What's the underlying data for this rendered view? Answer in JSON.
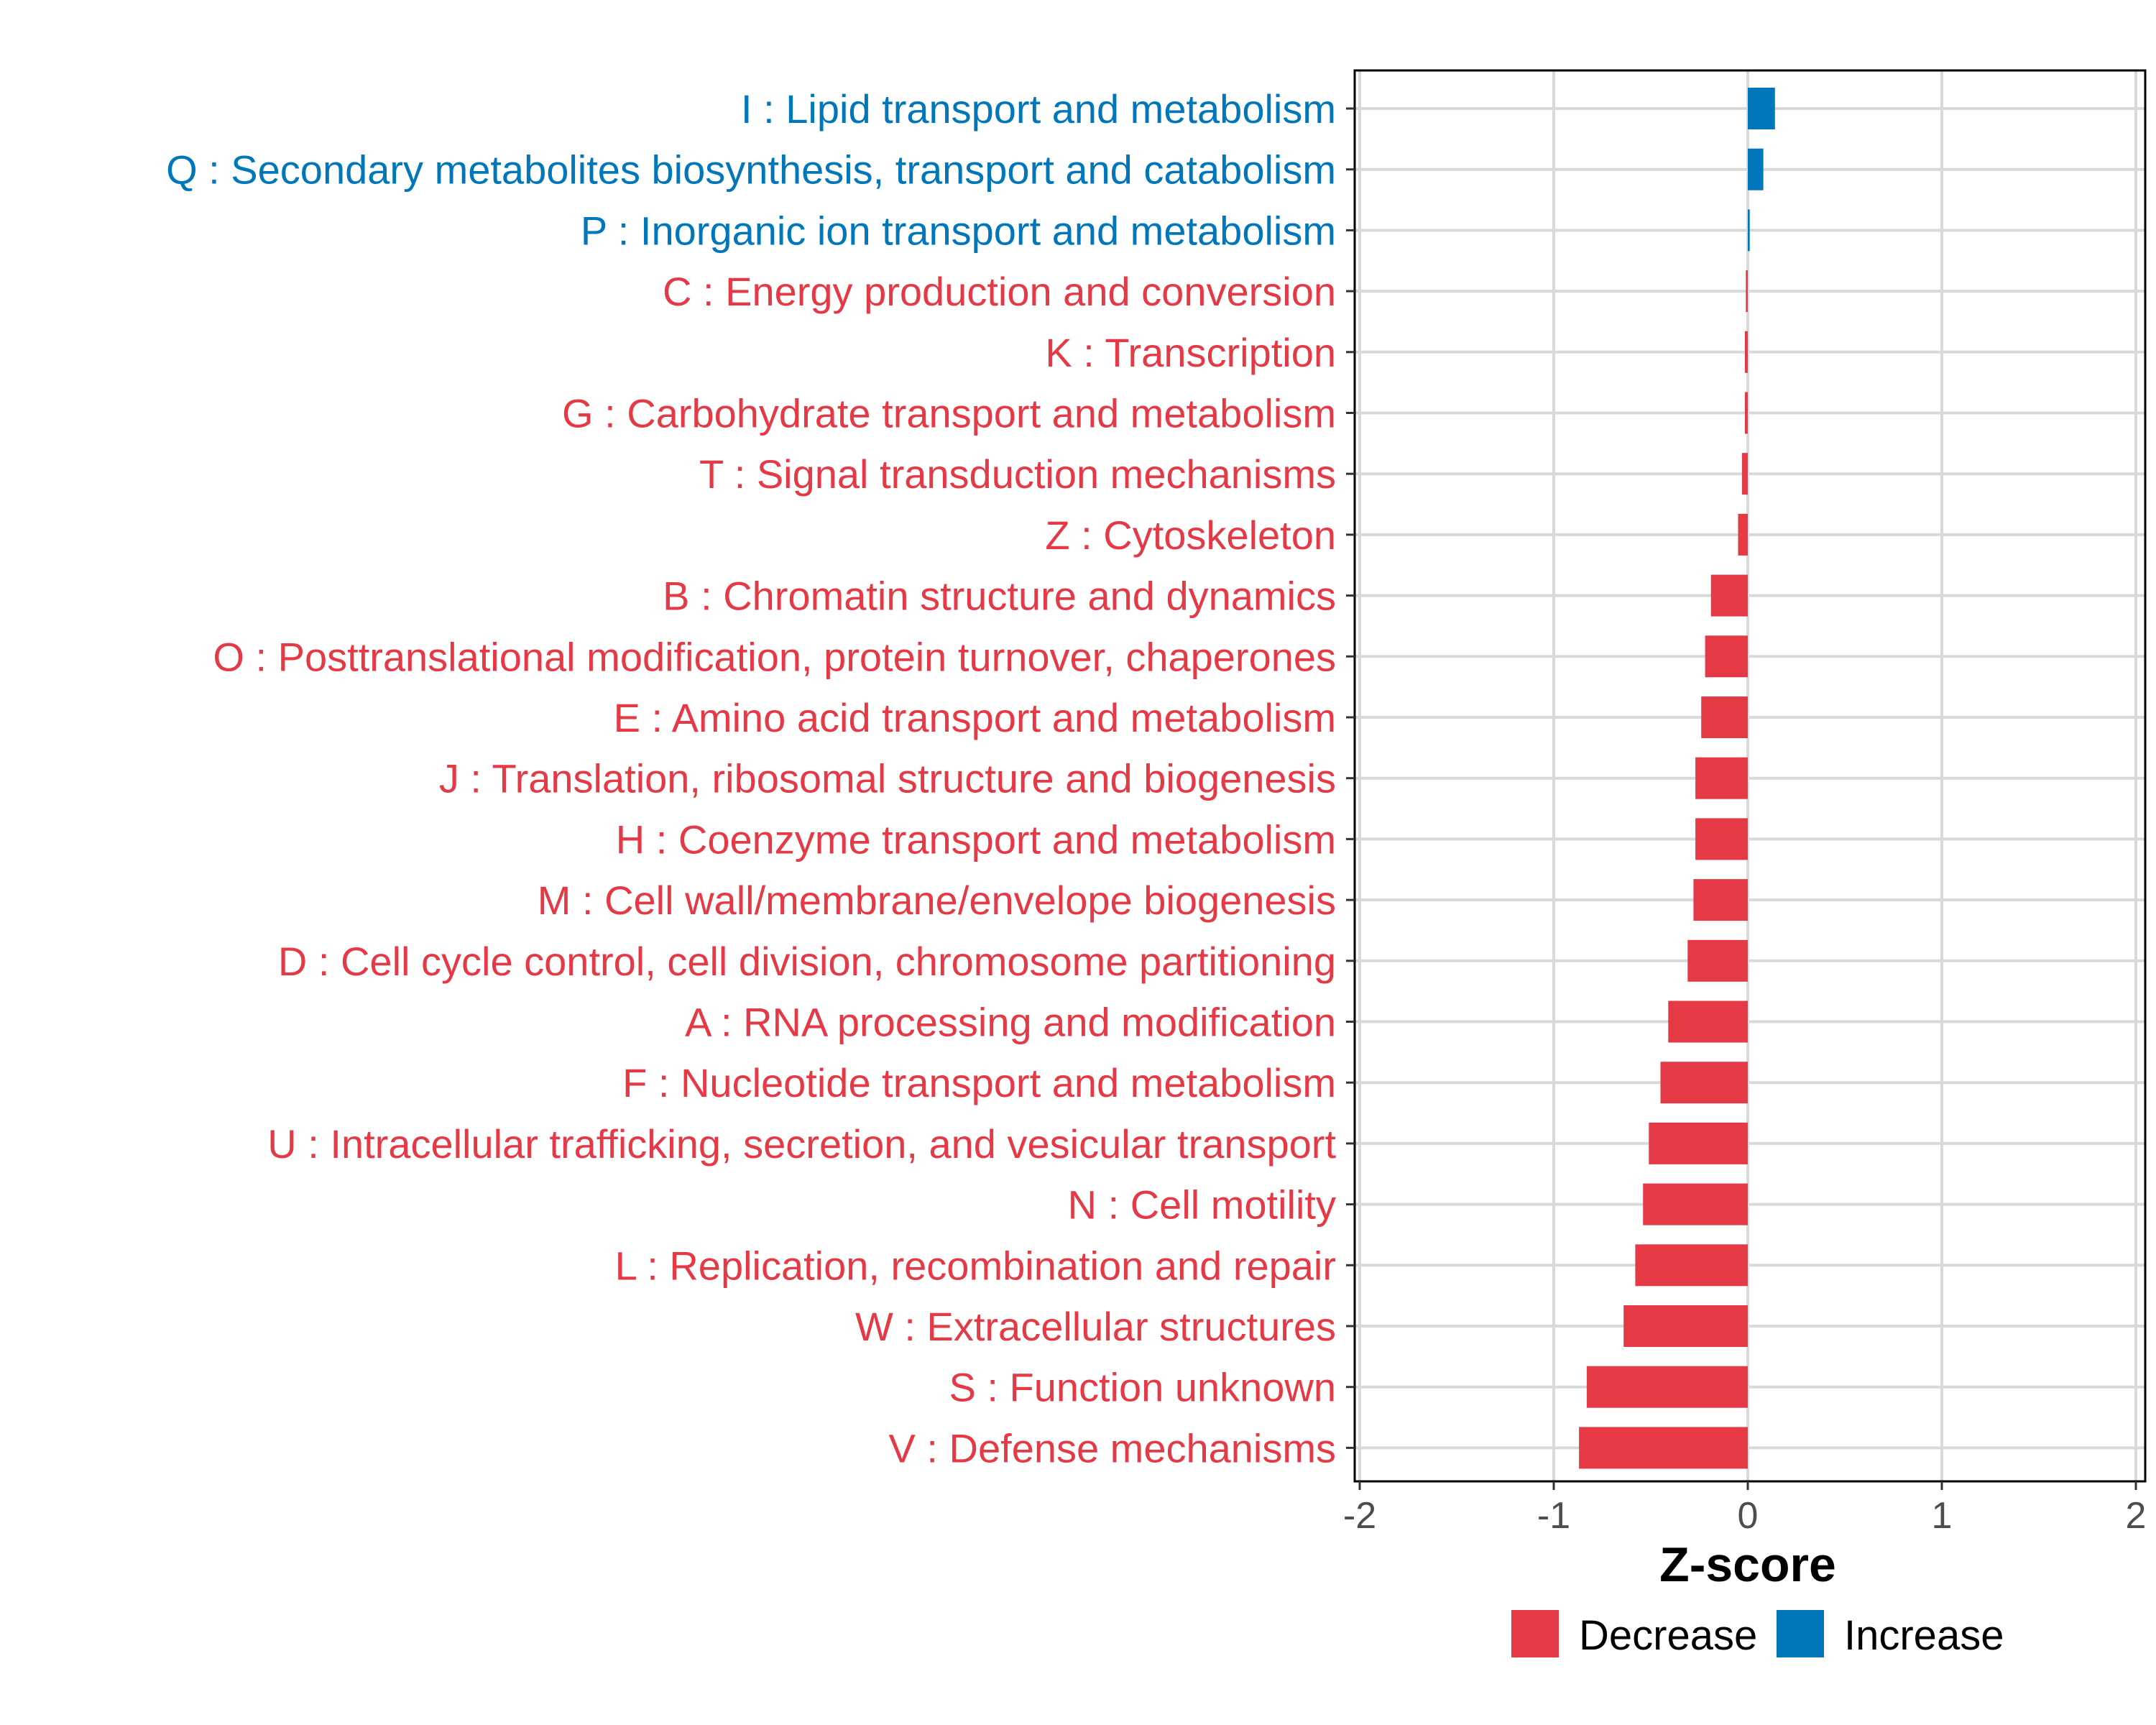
{
  "chart_data": {
    "type": "bar",
    "orientation": "horizontal",
    "xlabel": "Z-score",
    "xlim": [
      -2,
      2
    ],
    "xticks": [
      -2,
      -1,
      0,
      1,
      2
    ],
    "xtick_labels": [
      "-2",
      "-1",
      "0",
      "1",
      "2"
    ],
    "grid": true,
    "legend_position": "bottom",
    "legend": [
      {
        "name": "Decrease",
        "color": "#E63946"
      },
      {
        "name": "Increase",
        "color": "#0077BB"
      }
    ],
    "categories": [
      "I : Lipid transport and metabolism",
      "Q : Secondary metabolites biosynthesis, transport and catabolism",
      "P : Inorganic ion transport and metabolism",
      "C : Energy production and conversion",
      "K : Transcription",
      "G : Carbohydrate transport and metabolism",
      "T : Signal transduction mechanisms",
      "Z : Cytoskeleton",
      "B : Chromatin structure and dynamics",
      "O : Posttranslational modification, protein turnover, chaperones",
      "E : Amino acid transport and metabolism",
      "J : Translation, ribosomal structure and biogenesis",
      "H : Coenzyme transport and metabolism",
      "M : Cell wall/membrane/envelope biogenesis",
      "D : Cell cycle control, cell division, chromosome partitioning",
      "A : RNA processing and modification",
      "F : Nucleotide transport and metabolism",
      "U : Intracellular trafficking, secretion, and vesicular transport",
      "N : Cell motility",
      "L : Replication, recombination and repair",
      "W : Extracellular structures",
      "S : Function unknown",
      "V : Defense mechanisms"
    ],
    "values": [
      0.14,
      0.08,
      0.01,
      -0.01,
      -0.015,
      -0.015,
      -0.03,
      -0.05,
      -0.19,
      -0.22,
      -0.24,
      -0.27,
      -0.27,
      -0.28,
      -0.31,
      -0.41,
      -0.45,
      -0.51,
      -0.54,
      -0.58,
      -0.64,
      -0.83,
      -0.87
    ],
    "groups": [
      "Increase",
      "Increase",
      "Increase",
      "Decrease",
      "Decrease",
      "Decrease",
      "Decrease",
      "Decrease",
      "Decrease",
      "Decrease",
      "Decrease",
      "Decrease",
      "Decrease",
      "Decrease",
      "Decrease",
      "Decrease",
      "Decrease",
      "Decrease",
      "Decrease",
      "Decrease",
      "Decrease",
      "Decrease",
      "Decrease"
    ]
  }
}
